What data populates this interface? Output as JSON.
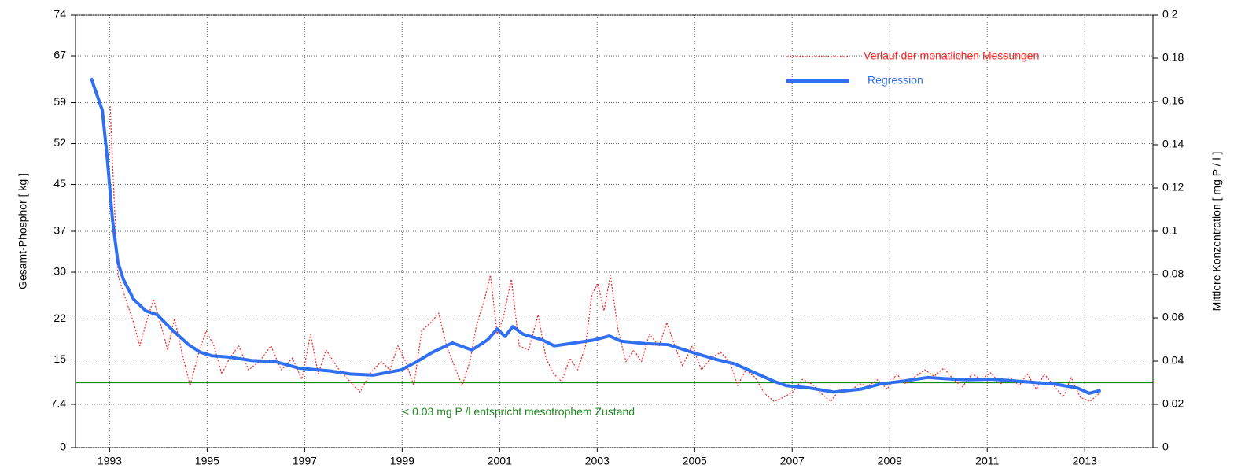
{
  "chart_data": {
    "type": "line",
    "y_label": "Gesamt-Phosphor  [ kg ]",
    "y2_label": "Mittlere Konzentration  [ mg P / l ]",
    "xlim": [
      1992.3,
      2014.4
    ],
    "xticks": [
      1993,
      1995,
      1997,
      1999,
      2001,
      2003,
      2005,
      2007,
      2009,
      2011,
      2013
    ],
    "ylim": [
      0,
      74
    ],
    "yticks": [
      0,
      7.4,
      15,
      22,
      30,
      37,
      45,
      52,
      59,
      67,
      74
    ],
    "y2lim": [
      0,
      0.2
    ],
    "y2ticks": [
      0,
      0.02,
      0.04,
      0.06,
      0.08,
      0.1,
      0.12,
      0.14,
      0.16,
      0.18,
      0.2
    ],
    "grid": true,
    "legend": "top-right",
    "threshold": {
      "value": 0.03,
      "axis": "y2",
      "color": "#1a8a1a",
      "label": "< 0.03 mg P /l   entspricht  mesotrophem Zustand"
    },
    "series": [
      {
        "name": "Verlauf der monatlichen Messungen",
        "color": "#ff2020",
        "style": "dotted",
        "x": [
          1993.01,
          1993.09,
          1993.17,
          1993.33,
          1993.49,
          1993.62,
          1993.75,
          1993.9,
          1994.06,
          1994.19,
          1994.33,
          1994.49,
          1994.65,
          1994.82,
          1994.98,
          1995.14,
          1995.3,
          1995.46,
          1995.65,
          1995.85,
          1996.07,
          1996.31,
          1996.52,
          1996.75,
          1996.94,
          1997.12,
          1997.28,
          1997.44,
          1997.68,
          1997.93,
          1998.14,
          1998.33,
          1998.57,
          1998.75,
          1998.91,
          1999.07,
          1999.24,
          1999.4,
          1999.59,
          1999.75,
          1999.91,
          2000.07,
          2000.23,
          2000.39,
          2000.52,
          2000.69,
          2000.81,
          2000.95,
          2001.07,
          2001.24,
          2001.4,
          2001.59,
          2001.79,
          2001.95,
          2002.11,
          2002.27,
          2002.44,
          2002.6,
          2002.76,
          2002.89,
          2003.01,
          2003.14,
          2003.27,
          2003.43,
          2003.59,
          2003.75,
          2003.91,
          2004.07,
          2004.27,
          2004.43,
          2004.59,
          2004.75,
          2004.95,
          2005.14,
          2005.33,
          2005.53,
          2005.72,
          2005.88,
          2006.05,
          2006.24,
          2006.43,
          2006.63,
          2006.82,
          2007.01,
          2007.21,
          2007.4,
          2007.59,
          2007.79,
          2007.98,
          2008.17,
          2008.37,
          2008.56,
          2008.75,
          2008.95,
          2009.14,
          2009.33,
          2009.53,
          2009.72,
          2009.91,
          2010.11,
          2010.3,
          2010.49,
          2010.69,
          2010.88,
          2011.07,
          2011.27,
          2011.46,
          2011.66,
          2011.82,
          2012.01,
          2012.17,
          2012.37,
          2012.56,
          2012.72,
          2012.91,
          2013.11,
          2013.3
        ],
        "values": [
          58.4,
          42.9,
          29.5,
          25.4,
          21.4,
          17.4,
          21.4,
          25.4,
          20.7,
          16.7,
          22.1,
          16.0,
          10.6,
          16.0,
          20.0,
          17.4,
          12.6,
          15.3,
          17.4,
          13.3,
          14.7,
          17.4,
          13.3,
          15.3,
          11.7,
          19.4,
          12.6,
          16.7,
          13.6,
          11.3,
          9.5,
          12.6,
          14.7,
          13.3,
          17.4,
          14.7,
          10.6,
          20.0,
          21.4,
          23.0,
          17.4,
          14.0,
          10.6,
          14.7,
          20.7,
          25.4,
          29.5,
          19.4,
          22.1,
          28.8,
          17.4,
          16.7,
          22.7,
          15.3,
          12.6,
          11.3,
          15.3,
          13.3,
          17.4,
          26.1,
          28.1,
          23.4,
          29.5,
          20.0,
          14.7,
          16.7,
          14.7,
          19.4,
          17.4,
          21.4,
          17.4,
          14.0,
          17.4,
          13.3,
          15.3,
          16.3,
          14.7,
          10.6,
          13.3,
          12.0,
          9.3,
          7.9,
          8.6,
          9.5,
          11.7,
          10.9,
          9.3,
          7.9,
          10.0,
          9.5,
          10.9,
          10.6,
          11.6,
          10.0,
          12.6,
          10.9,
          12.2,
          13.3,
          12.2,
          13.6,
          11.7,
          10.4,
          12.6,
          11.7,
          12.8,
          10.9,
          12.0,
          10.6,
          12.6,
          10.0,
          12.6,
          10.6,
          8.6,
          12.0,
          8.6,
          7.9,
          9.3
        ]
      },
      {
        "name": "Regression",
        "color": "#2f6ff0",
        "style": "solid",
        "x": [
          1992.62,
          1992.85,
          1992.95,
          1993.06,
          1993.17,
          1993.28,
          1993.49,
          1993.74,
          1993.98,
          1994.3,
          1994.62,
          1994.86,
          1995.1,
          1995.43,
          1995.91,
          1996.4,
          1996.88,
          1997.53,
          1997.93,
          1998.41,
          1998.98,
          1999.3,
          1999.62,
          2000.03,
          2000.43,
          2000.75,
          2000.95,
          2001.11,
          2001.27,
          2001.48,
          2001.88,
          2002.12,
          2002.53,
          2002.93,
          2003.25,
          2003.49,
          2003.98,
          2004.46,
          2004.95,
          2005.43,
          2005.83,
          2006.23,
          2006.64,
          2006.88,
          2007.36,
          2007.85,
          2008.41,
          2008.82,
          2009.3,
          2009.78,
          2010.11,
          2010.59,
          2011.08,
          2011.72,
          2012.37,
          2012.85,
          2013.09,
          2013.33
        ],
        "values": [
          63.2,
          57.7,
          49.6,
          38.9,
          31.7,
          28.8,
          25.4,
          23.4,
          22.7,
          20.0,
          17.6,
          16.3,
          15.7,
          15.5,
          14.9,
          14.7,
          13.6,
          13.1,
          12.6,
          12.4,
          13.3,
          14.7,
          16.3,
          17.9,
          16.7,
          18.4,
          20.3,
          19.0,
          20.7,
          19.4,
          18.4,
          17.4,
          17.9,
          18.4,
          19.1,
          18.2,
          17.8,
          17.6,
          16.3,
          15.1,
          14.3,
          12.8,
          11.3,
          10.6,
          10.2,
          9.5,
          10.0,
          10.9,
          11.4,
          12.0,
          11.8,
          11.6,
          11.7,
          11.3,
          10.9,
          10.2,
          9.3,
          9.8
        ]
      }
    ]
  }
}
